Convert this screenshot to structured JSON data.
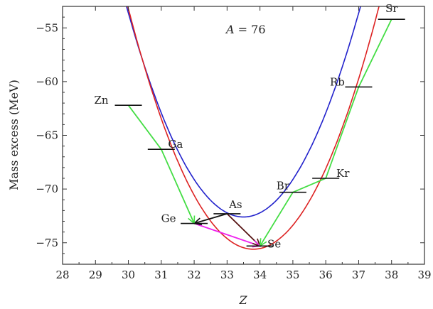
{
  "chart_data": {
    "type": "line",
    "annotation": {
      "italic": "A",
      "rest": " = 76"
    },
    "xlabel": "Z",
    "ylabel": "Mass excess (MeV)",
    "xlim": [
      28,
      39
    ],
    "ylim": [
      -77,
      -53
    ],
    "xticks": [
      28,
      29,
      30,
      31,
      32,
      33,
      34,
      35,
      36,
      37,
      38,
      39
    ],
    "yticks": [
      -75,
      -70,
      -65,
      -60,
      -55
    ],
    "colors": {
      "blue_parabola": "#2222cc",
      "red_parabola": "#dd2222",
      "green_path": "#44dd44",
      "pink_path": "#ee22ee",
      "dark_path": "#551111",
      "black_arrow": "#111111"
    },
    "nuclides": [
      {
        "Z": 30,
        "mass_excess": -62.2,
        "label": "Zn"
      },
      {
        "Z": 31,
        "mass_excess": -66.3,
        "label": "Ga"
      },
      {
        "Z": 32,
        "mass_excess": -73.2,
        "label": "Ge"
      },
      {
        "Z": 33,
        "mass_excess": -72.3,
        "label": "As"
      },
      {
        "Z": 34,
        "mass_excess": -75.3,
        "label": "Se"
      },
      {
        "Z": 35,
        "mass_excess": -70.3,
        "label": "Br"
      },
      {
        "Z": 36,
        "mass_excess": -69.0,
        "label": "Kr"
      },
      {
        "Z": 37,
        "mass_excess": -60.5,
        "label": "Rb"
      },
      {
        "Z": 38,
        "mass_excess": -54.2,
        "label": "Sr"
      }
    ],
    "parabolas": [
      {
        "color_key": "blue_parabola",
        "vertex_Z": 33.5,
        "vertex_mass": -72.6,
        "curvature": 1.55
      },
      {
        "color_key": "red_parabola",
        "vertex_Z": 33.8,
        "vertex_mass": -75.6,
        "curvature": 1.55
      }
    ],
    "green_path": [
      [
        30,
        -62.2
      ],
      [
        31,
        -66.3
      ],
      [
        32,
        -73.2
      ]
    ],
    "green_path_right": [
      [
        34,
        -75.3
      ],
      [
        35,
        -70.3
      ],
      [
        36,
        -69.0
      ],
      [
        37,
        -60.5
      ],
      [
        38,
        -54.2
      ]
    ],
    "pink_path": [
      [
        32,
        -73.2
      ],
      [
        34,
        -75.3
      ]
    ],
    "dark_path": [
      [
        33,
        -72.3
      ],
      [
        34,
        -75.3
      ]
    ],
    "black_arrow": [
      [
        33,
        -72.3
      ],
      [
        32,
        -73.2
      ]
    ]
  }
}
